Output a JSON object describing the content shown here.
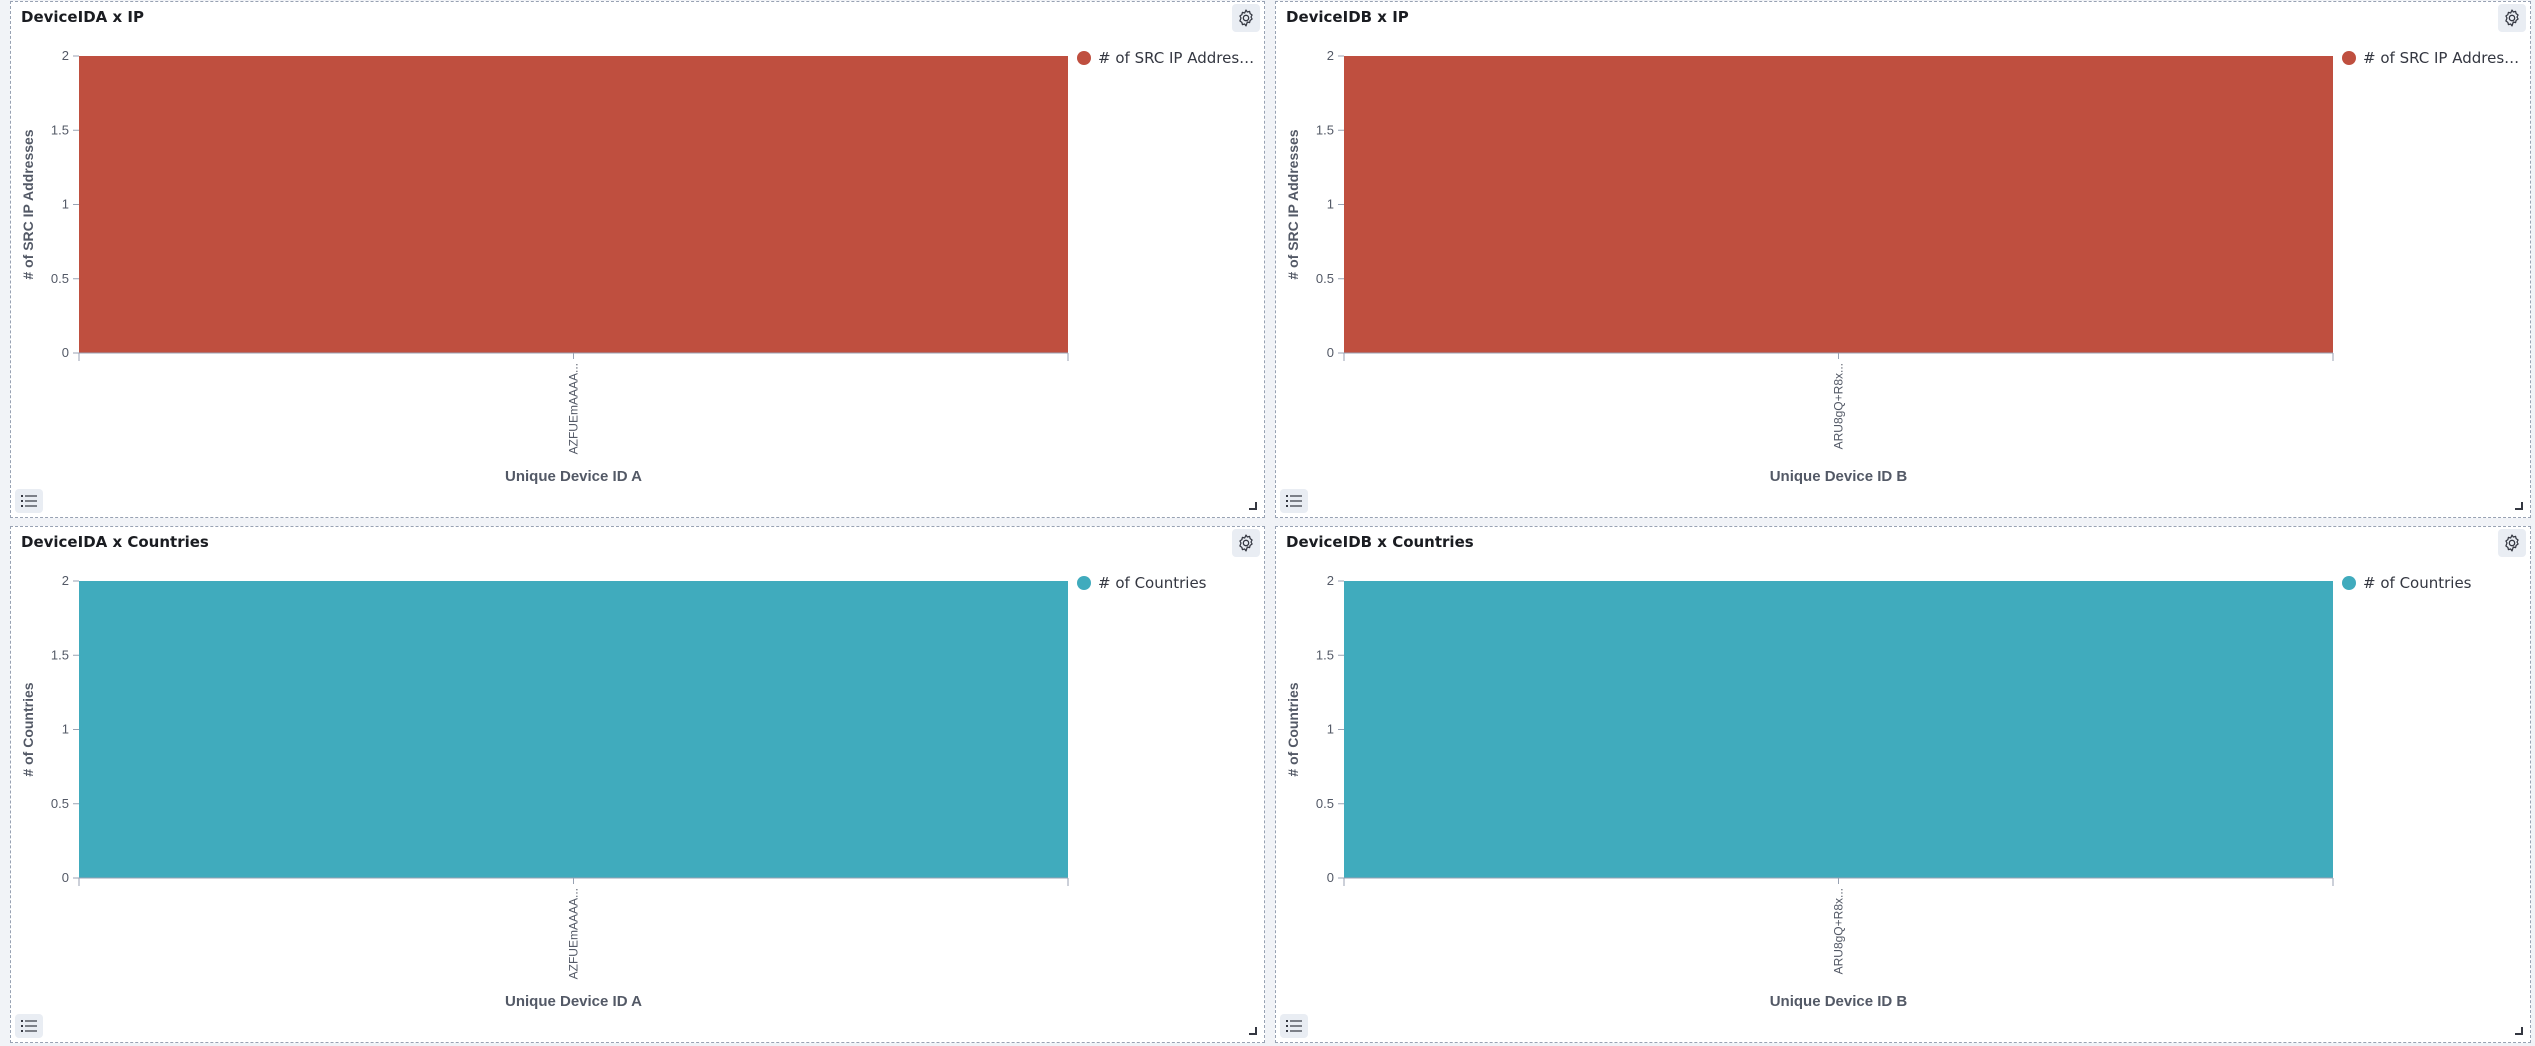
{
  "panels": [
    {
      "title": "DeviceIDA x IP",
      "legend": "# of SRC IP Address...",
      "color": "#bf4f3f",
      "chart_data": {
        "type": "bar",
        "categories": [
          "AZFUEmAAAA..."
        ],
        "values": [
          2
        ],
        "xlabel": "Unique Device ID A",
        "ylabel": "# of SRC IP Addresses",
        "ylim": [
          0,
          2
        ],
        "yticks": [
          "0",
          "0.5",
          "1",
          "1.5",
          "2"
        ]
      }
    },
    {
      "title": "DeviceIDB x IP",
      "legend": "# of SRC IP Address...",
      "color": "#bf4f3f",
      "chart_data": {
        "type": "bar",
        "categories": [
          "ARU8gQ+R8x..."
        ],
        "values": [
          2
        ],
        "xlabel": "Unique Device ID B",
        "ylabel": "# of SRC IP Addresses",
        "ylim": [
          0,
          2
        ],
        "yticks": [
          "0",
          "0.5",
          "1",
          "1.5",
          "2"
        ]
      }
    },
    {
      "title": "DeviceIDA x Countries",
      "legend": "# of Countries",
      "color": "#40abbd",
      "chart_data": {
        "type": "bar",
        "categories": [
          "AZFUEmAAAA..."
        ],
        "values": [
          2
        ],
        "xlabel": "Unique Device ID A",
        "ylabel": "# of Countries",
        "ylim": [
          0,
          2
        ],
        "yticks": [
          "0",
          "0.5",
          "1",
          "1.5",
          "2"
        ]
      }
    },
    {
      "title": "DeviceIDB x Countries",
      "legend": "# of Countries",
      "color": "#40abbd",
      "chart_data": {
        "type": "bar",
        "categories": [
          "ARU8gQ+R8x..."
        ],
        "values": [
          2
        ],
        "xlabel": "Unique Device ID B",
        "ylabel": "# of Countries",
        "ylim": [
          0,
          2
        ],
        "yticks": [
          "0",
          "0.5",
          "1",
          "1.5",
          "2"
        ]
      }
    }
  ],
  "icons": {
    "settings": "gear-icon",
    "legend_toggle": "list-icon",
    "resize": "resize-handle-icon"
  }
}
